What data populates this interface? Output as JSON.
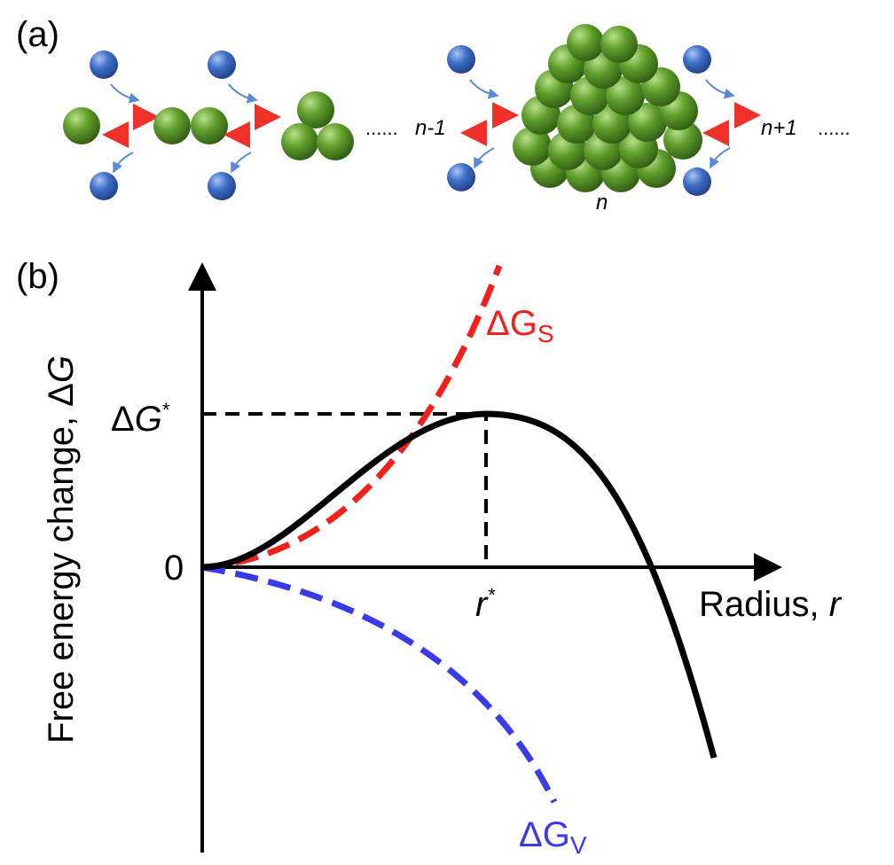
{
  "panel_a": {
    "label": "(a)",
    "dots_left": "......",
    "n_minus_1": "n-1",
    "n": "n",
    "n_plus_1": "n+1",
    "dots_right": "......"
  },
  "panel_b": {
    "label": "(b)",
    "y_axis_label": {
      "text": "Free energy change, ",
      "delta": "Δ",
      "symbol": "G"
    },
    "x_axis_label": {
      "text": "Radius, ",
      "symbol": "r"
    },
    "origin": "0",
    "critical_energy": {
      "delta": "Δ",
      "symbol": "G",
      "star": "*"
    },
    "critical_radius": {
      "symbol": "r",
      "star": "*"
    },
    "surface_term": {
      "main": "ΔG",
      "sub": "S"
    },
    "volume_term": {
      "main": "ΔG",
      "sub": "V"
    }
  }
}
